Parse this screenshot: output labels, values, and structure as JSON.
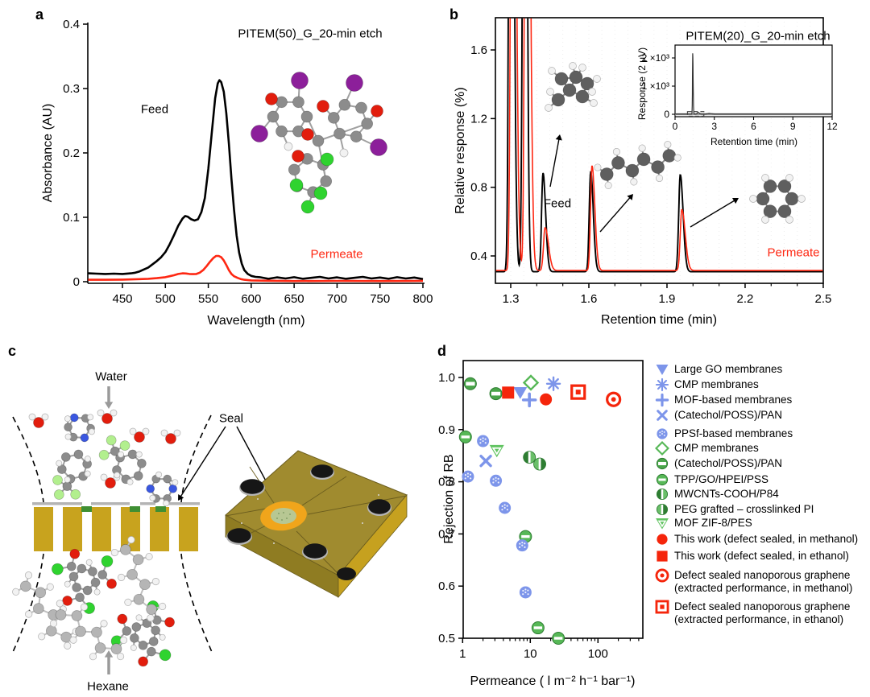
{
  "palette": {
    "curve_black": "#000000",
    "curve_red": "#fe2712",
    "marker_blue": "#7d95ea",
    "marker_green": "#57b857",
    "marker_green_dark": "#2e7d32",
    "marker_green_mid": "#4aa54a",
    "marker_green_light": "#6abf69",
    "marker_red": "#f5250b",
    "gold": "#c8a31e",
    "slab_top": "#a08b2f",
    "slab_left": "#8f7c22",
    "slab_right": "#c6a11f",
    "seal_green": "#3f8f33",
    "seal_ring_orange": "#f0a51b",
    "seal_patch_green": "#b7c793",
    "graphene_gray": "#b4b4b4",
    "arrow_gray": "#9a9a9a",
    "atom_carbon": "#8c8c8c",
    "atom_carbon_dark": "#5f5f5f",
    "atom_carbon_faint": "#b5b5b5",
    "atom_hydrogen": "#f2f2f2",
    "atom_oxygen": "#e21d0d",
    "atom_nitrogen": "#3a57e0",
    "atom_chlorine": "#2fd32f",
    "atom_fluorine": "#b2ef8e",
    "atom_iodine": "#8c1f9a"
  },
  "panel_a": {
    "label": "a",
    "title": "PITEM(50)_G_20-min etch",
    "xlabel": "Wavelength (nm)",
    "ylabel": "Absorbance (AU)",
    "feed_label": "Feed",
    "permeate_label": "Permeate",
    "molecule_icon": "rose-bengal-molecule"
  },
  "panel_b": {
    "label": "b",
    "title": "PITEM(20)_G_20-min etch",
    "xlabel": "Retention time (min)",
    "ylabel": "Relative response (%)",
    "feed_label": "Feed",
    "permeate_label": "Permeate",
    "molecule_icons": [
      "branched-alkane-molecule",
      "n-hexane-molecule",
      "cyclohexane-molecule"
    ],
    "inset": {
      "xlabel": "Retention time (min)",
      "ylabel": "Response (2 μV)"
    }
  },
  "panel_c": {
    "label": "c",
    "water_label": "Water",
    "hexane_label": "Hexane",
    "seal_label": "Seal"
  },
  "panel_d": {
    "label": "d",
    "xlabel": "Permeance ( l m⁻² h⁻¹ bar⁻¹)",
    "ylabel": "Rejection of RB",
    "legend": [
      {
        "id": "large_go",
        "marker": "tri-down",
        "color": "#7d95ea",
        "label": "Large GO membranes"
      },
      {
        "id": "cmp_blue",
        "marker": "asterisk",
        "color": "#7d95ea",
        "label": "CMP membranes"
      },
      {
        "id": "mof",
        "marker": "plus",
        "color": "#7d95ea",
        "label": "MOF-based membranes"
      },
      {
        "id": "catechol_blue",
        "marker": "x",
        "color": "#7d95ea",
        "label": "(Catechol/POSS)/PAN"
      },
      {
        "id": "ppsf",
        "marker": "circle-dotted",
        "color": "#7d95ea",
        "label": "PPSf-based membranes"
      },
      {
        "id": "cmp_green",
        "marker": "diamond-open",
        "color": "#57b857",
        "label": "CMP membranes"
      },
      {
        "id": "catechol_green",
        "marker": "circle-hbar",
        "color": "#4aa54a",
        "label": "(Catechol/POSS)/PAN"
      },
      {
        "id": "tpp",
        "marker": "circle-minus",
        "color": "#57b857",
        "label": "TPP/GO/HPEI/PSS"
      },
      {
        "id": "mwcnt",
        "marker": "circle-vhalf-left",
        "color": "#2e7d32",
        "label": "MWCNTs-COOH/P84"
      },
      {
        "id": "peg",
        "marker": "circle-vhalf-right",
        "color": "#2e7d32",
        "label": "PEG grafted – crosslinked PI"
      },
      {
        "id": "zif8",
        "marker": "tri-down-inner",
        "color": "#62c462",
        "label": "MOF ZIF-8/PES"
      },
      {
        "id": "this_meoh",
        "marker": "circle-filled",
        "color": "#f5250b",
        "label": "This work (defect sealed, in methanol)"
      },
      {
        "id": "this_etoh",
        "marker": "square-filled",
        "color": "#f5250b",
        "label": "This work (defect sealed, in ethanol)"
      },
      {
        "id": "dsng_meoh",
        "marker": "circle-dot-open",
        "color": "#f5250b",
        "label": "Defect sealed nanoporous graphene",
        "label2": "(extracted performance, in methanol)"
      },
      {
        "id": "dsng_etoh",
        "marker": "square-dot-open",
        "color": "#f5250b",
        "label": "Defect sealed nanoporous graphene",
        "label2": "(extracted performance, in ethanol)"
      }
    ]
  },
  "chart_data": [
    {
      "id": "uvvis",
      "type": "line",
      "title": "PITEM(50)_G_20-min etch",
      "xlabel": "Wavelength (nm)",
      "ylabel": "Absorbance (AU)",
      "xlim": [
        410,
        800
      ],
      "ylim": [
        0,
        0.4
      ],
      "xticks": [
        450,
        500,
        550,
        600,
        650,
        700,
        750,
        800
      ],
      "yticks": [
        "0",
        "0.1",
        "0.2",
        "0.3",
        "0.4"
      ],
      "ytick_values": [
        0,
        0.1,
        0.2,
        0.3,
        0.4
      ],
      "grid": false,
      "legend_position": "annotations",
      "series": [
        {
          "name": "Feed",
          "color": "#000000",
          "points": [
            [
              410,
              0.013
            ],
            [
              420,
              0.0125
            ],
            [
              430,
              0.012
            ],
            [
              440,
              0.0125
            ],
            [
              450,
              0.012
            ],
            [
              460,
              0.013
            ],
            [
              465,
              0.014
            ],
            [
              470,
              0.016
            ],
            [
              475,
              0.019
            ],
            [
              480,
              0.022
            ],
            [
              485,
              0.027
            ],
            [
              490,
              0.032
            ],
            [
              495,
              0.038
            ],
            [
              500,
              0.046
            ],
            [
              505,
              0.058
            ],
            [
              510,
              0.072
            ],
            [
              515,
              0.087
            ],
            [
              520,
              0.098
            ],
            [
              523,
              0.102
            ],
            [
              526,
              0.101
            ],
            [
              530,
              0.097
            ],
            [
              534,
              0.095
            ],
            [
              538,
              0.097
            ],
            [
              542,
              0.108
            ],
            [
              546,
              0.13
            ],
            [
              550,
              0.175
            ],
            [
              554,
              0.23
            ],
            [
              558,
              0.285
            ],
            [
              561,
              0.308
            ],
            [
              563,
              0.313
            ],
            [
              565,
              0.31
            ],
            [
              568,
              0.295
            ],
            [
              571,
              0.262
            ],
            [
              574,
              0.215
            ],
            [
              577,
              0.16
            ],
            [
              580,
              0.112
            ],
            [
              583,
              0.072
            ],
            [
              586,
              0.045
            ],
            [
              589,
              0.028
            ],
            [
              592,
              0.018
            ],
            [
              596,
              0.012
            ],
            [
              600,
              0.009
            ],
            [
              605,
              0.0075
            ],
            [
              610,
              0.007
            ],
            [
              620,
              0.0045
            ],
            [
              630,
              0.0068
            ],
            [
              640,
              0.005
            ],
            [
              650,
              0.007
            ],
            [
              660,
              0.0045
            ],
            [
              670,
              0.006
            ],
            [
              680,
              0.0075
            ],
            [
              690,
              0.005
            ],
            [
              700,
              0.0068
            ],
            [
              710,
              0.0045
            ],
            [
              720,
              0.006
            ],
            [
              730,
              0.0075
            ],
            [
              740,
              0.005
            ],
            [
              750,
              0.0065
            ],
            [
              760,
              0.0045
            ],
            [
              770,
              0.007
            ],
            [
              780,
              0.005
            ],
            [
              790,
              0.0065
            ],
            [
              800,
              0.004
            ]
          ]
        },
        {
          "name": "Permeate",
          "color": "#fe2712",
          "points": [
            [
              410,
              0.003
            ],
            [
              430,
              0.003
            ],
            [
              450,
              0.0032
            ],
            [
              470,
              0.004
            ],
            [
              480,
              0.0045
            ],
            [
              490,
              0.0055
            ],
            [
              500,
              0.007
            ],
            [
              505,
              0.0085
            ],
            [
              510,
              0.01
            ],
            [
              515,
              0.012
            ],
            [
              520,
              0.013
            ],
            [
              524,
              0.0128
            ],
            [
              528,
              0.012
            ],
            [
              532,
              0.0118
            ],
            [
              536,
              0.012
            ],
            [
              540,
              0.014
            ],
            [
              544,
              0.018
            ],
            [
              548,
              0.024
            ],
            [
              552,
              0.031
            ],
            [
              556,
              0.037
            ],
            [
              559,
              0.04
            ],
            [
              562,
              0.04
            ],
            [
              565,
              0.038
            ],
            [
              568,
              0.033
            ],
            [
              571,
              0.026
            ],
            [
              574,
              0.018
            ],
            [
              577,
              0.012
            ],
            [
              580,
              0.0085
            ],
            [
              584,
              0.006
            ],
            [
              588,
              0.004
            ],
            [
              592,
              0.003
            ],
            [
              600,
              0.002
            ],
            [
              620,
              0.0015
            ],
            [
              650,
              0.001
            ],
            [
              700,
              0.0012
            ],
            [
              750,
              0.001
            ],
            [
              800,
              0.0012
            ]
          ]
        }
      ]
    },
    {
      "id": "gc",
      "type": "line",
      "title": "PITEM(20)_G_20-min etch",
      "xlabel": "Retention time (min)",
      "ylabel": "Relative response (%)",
      "xlim": [
        1.241,
        2.5
      ],
      "ylim": [
        0.241,
        1.787
      ],
      "xticks": [
        1.3,
        1.6,
        1.9,
        2.2,
        2.5
      ],
      "yticks": [
        "0.4",
        "0.8",
        "1.2",
        "1.6"
      ],
      "ytick_values": [
        0.4,
        0.8,
        1.2,
        1.6
      ],
      "series": [
        {
          "name": "Feed",
          "color": "#000000",
          "baseline": 0.308,
          "peaks": [
            [
              1.3,
              5,
              0.006,
              0.01
            ],
            [
              1.353,
              5,
              0.006,
              0.008
            ],
            [
              1.424,
              0.575,
              0.0055,
              0.01
            ],
            [
              1.607,
              0.585,
              0.0055,
              0.01
            ],
            [
              1.951,
              0.565,
              0.006,
              0.011
            ]
          ]
        },
        {
          "name": "Permeate",
          "color": "#fe2712",
          "baseline": 0.315,
          "peaks": [
            [
              1.307,
              5,
              0.006,
              0.011
            ],
            [
              1.361,
              5,
              0.006,
              0.011
            ],
            [
              1.432,
              0.25,
              0.006,
              0.013
            ],
            [
              1.612,
              0.61,
              0.0055,
              0.011
            ],
            [
              1.957,
              0.355,
              0.006,
              0.013
            ]
          ]
        }
      ]
    },
    {
      "id": "gc_inset",
      "type": "line",
      "xlabel": "Retention time (min)",
      "ylabel": "Response (2 μV)",
      "xlim": [
        0,
        12
      ],
      "ylim": [
        -86,
        2460
      ],
      "xticks": [
        0,
        3,
        6,
        9,
        12
      ],
      "yticks": [
        "0",
        "1 ×10³",
        "2 ×10³"
      ],
      "ytick_values": [
        0,
        1000,
        2000
      ],
      "highlight_box": {
        "x": [
          0.95,
          2.2
        ],
        "y": [
          -70,
          95
        ]
      },
      "series": [
        {
          "name": "Permeate GC trace",
          "color": "#333333",
          "baseline": 12,
          "peaks": [
            [
              1.35,
              2150,
              0.02,
              0.03
            ],
            [
              1.75,
              55,
              0.05,
              0.09
            ],
            [
              2.6,
              18,
              0.1,
              0.15
            ]
          ]
        }
      ]
    },
    {
      "id": "rejection_vs_permeance",
      "type": "scatter",
      "xlabel": "Permeance ( l m⁻² h⁻¹ bar⁻¹)",
      "ylabel": "Rejection of RB",
      "xscale": "log",
      "xlim": [
        1,
        460
      ],
      "ylim": [
        0.5,
        1.032
      ],
      "xticks": [
        1,
        10,
        100
      ],
      "yticks": [
        "0.5",
        "0.6",
        "0.7",
        "0.8",
        "0.9",
        "1.0"
      ],
      "ytick_values": [
        0.5,
        0.6,
        0.7,
        0.8,
        0.9,
        1.0
      ],
      "legend_position": "right",
      "series": [
        {
          "name": "Large GO membranes",
          "id": "large_go",
          "points": [
            [
              7.1,
              0.971
            ]
          ]
        },
        {
          "name": "CMP membranes (blue)",
          "id": "cmp_blue",
          "points": [
            [
              22,
              0.988
            ]
          ]
        },
        {
          "name": "MOF-based membranes",
          "id": "mof",
          "points": [
            [
              9.7,
              0.957
            ]
          ]
        },
        {
          "name": "(Catechol/POSS)/PAN (blue)",
          "id": "catechol_blue",
          "points": [
            [
              2.2,
              0.84
            ]
          ]
        },
        {
          "name": "PPSf-based membranes",
          "id": "ppsf",
          "points": [
            [
              1.2,
              0.81
            ],
            [
              2.0,
              0.878
            ],
            [
              3.1,
              0.802
            ],
            [
              4.2,
              0.75
            ],
            [
              7.6,
              0.678
            ],
            [
              8.5,
              0.588
            ]
          ]
        },
        {
          "name": "CMP membranes (green)",
          "id": "cmp_green",
          "points": [
            [
              10.2,
              0.99
            ]
          ]
        },
        {
          "name": "(Catechol/POSS)/PAN (green)",
          "id": "catechol_green",
          "points": [
            [
              1.3,
              0.988
            ],
            [
              3.1,
              0.969
            ]
          ]
        },
        {
          "name": "TPP/GO/HPEI/PSS",
          "id": "tpp",
          "points": [
            [
              1.1,
              0.886
            ],
            [
              8.5,
              0.695
            ],
            [
              13,
              0.52
            ],
            [
              26,
              0.5
            ]
          ]
        },
        {
          "name": "MWCNTs-COOH/P84",
          "id": "mwcnt",
          "points": [
            [
              9.7,
              0.847
            ]
          ]
        },
        {
          "name": "PEG grafted – crosslinked PI",
          "id": "peg",
          "points": [
            [
              13.8,
              0.834
            ]
          ]
        },
        {
          "name": "MOF ZIF-8/PES",
          "id": "zif8",
          "points": [
            [
              3.2,
              0.86
            ]
          ]
        },
        {
          "name": "This work (defect sealed, in methanol)",
          "id": "this_meoh",
          "points": [
            [
              17,
              0.958
            ]
          ]
        },
        {
          "name": "This work (defect sealed, in ethanol)",
          "id": "this_etoh",
          "points": [
            [
              4.7,
              0.971
            ]
          ]
        },
        {
          "name": "Defect sealed nanoporous graphene (extracted performance, in methanol)",
          "id": "dsng_meoh",
          "points": [
            [
              170,
              0.958
            ]
          ]
        },
        {
          "name": "Defect sealed nanoporous graphene (extracted performance, in ethanol)",
          "id": "dsng_etoh",
          "points": [
            [
              51,
              0.972
            ]
          ]
        }
      ]
    }
  ]
}
